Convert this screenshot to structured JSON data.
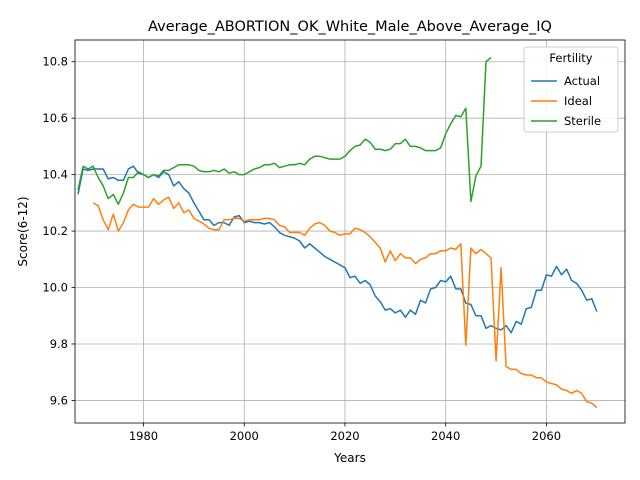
{
  "chart_data": {
    "type": "line",
    "title": "Average_ABORTION_OK_White_Male_Above_Average_IQ",
    "xlabel": "Years",
    "ylabel": "Score(6-12)",
    "xlim": [
      1966.4,
      2075.6
    ],
    "ylim": [
      9.52,
      10.877
    ],
    "xticks": [
      1980,
      2000,
      2020,
      2040,
      2060
    ],
    "yticks": [
      9.6,
      9.8,
      10.0,
      10.2,
      10.4,
      10.6,
      10.8
    ],
    "grid": true,
    "legend": {
      "title": "Fertility",
      "location": "top-right"
    },
    "series": [
      {
        "name": "Actual",
        "color": "#1f77b4",
        "x": [
          1967,
          1968,
          1969,
          1970,
          1971,
          1972,
          1973,
          1974,
          1975,
          1976,
          1977,
          1978,
          1979,
          1980,
          1981,
          1982,
          1983,
          1984,
          1985,
          1986,
          1987,
          1988,
          1989,
          1990,
          1991,
          1992,
          1993,
          1994,
          1995,
          1996,
          1997,
          1998,
          1999,
          2000,
          2001,
          2002,
          2003,
          2004,
          2005,
          2006,
          2007,
          2008,
          2009,
          2010,
          2011,
          2012,
          2013,
          2014,
          2015,
          2016,
          2017,
          2018,
          2019,
          2020,
          2021,
          2022,
          2023,
          2024,
          2025,
          2026,
          2027,
          2028,
          2029,
          2030,
          2031,
          2032,
          2033,
          2034,
          2035,
          2036,
          2037,
          2038,
          2039,
          2040,
          2041,
          2042,
          2043,
          2044,
          2045,
          2046,
          2047,
          2048,
          2049,
          2050,
          2051,
          2052,
          2053,
          2054,
          2055,
          2056,
          2057,
          2058,
          2059,
          2060,
          2061,
          2062,
          2063,
          2064,
          2065,
          2066,
          2067,
          2068,
          2069,
          2070
        ],
        "y": [
          10.33,
          10.42,
          10.415,
          10.42,
          10.42,
          10.42,
          10.385,
          10.39,
          10.38,
          10.38,
          10.42,
          10.43,
          10.405,
          10.4,
          10.39,
          10.4,
          10.39,
          10.41,
          10.4,
          10.36,
          10.375,
          10.35,
          10.335,
          10.3,
          10.27,
          10.24,
          10.24,
          10.22,
          10.23,
          10.23,
          10.22,
          10.25,
          10.255,
          10.23,
          10.235,
          10.23,
          10.23,
          10.225,
          10.23,
          10.215,
          10.195,
          10.185,
          10.18,
          10.175,
          10.165,
          10.14,
          10.155,
          10.14,
          10.125,
          10.11,
          10.1,
          10.09,
          10.08,
          10.07,
          10.035,
          10.04,
          10.015,
          10.025,
          10.01,
          9.97,
          9.95,
          9.92,
          9.925,
          9.91,
          9.92,
          9.895,
          9.92,
          9.905,
          9.955,
          9.945,
          9.995,
          10.0,
          10.025,
          10.02,
          10.04,
          9.995,
          9.995,
          9.945,
          9.94,
          9.9,
          9.9,
          9.855,
          9.865,
          9.855,
          9.85,
          9.865,
          9.84,
          9.88,
          9.87,
          9.925,
          9.93,
          9.99,
          9.99,
          10.045,
          10.04,
          10.075,
          10.045,
          10.065,
          10.025,
          10.015,
          9.99,
          9.955,
          9.96,
          9.915
        ]
      },
      {
        "name": "Ideal",
        "color": "#ff7f0e",
        "x": [
          1970,
          1971,
          1972,
          1973,
          1974,
          1975,
          1976,
          1977,
          1978,
          1979,
          1980,
          1981,
          1982,
          1983,
          1984,
          1985,
          1986,
          1987,
          1988,
          1989,
          1990,
          1991,
          1992,
          1993,
          1994,
          1995,
          1996,
          1997,
          1998,
          1999,
          2000,
          2001,
          2002,
          2003,
          2004,
          2005,
          2006,
          2007,
          2008,
          2009,
          2010,
          2011,
          2012,
          2013,
          2014,
          2015,
          2016,
          2017,
          2018,
          2019,
          2020,
          2021,
          2022,
          2023,
          2024,
          2025,
          2026,
          2027,
          2028,
          2029,
          2030,
          2031,
          2032,
          2033,
          2034,
          2035,
          2036,
          2037,
          2038,
          2039,
          2040,
          2041,
          2042,
          2043,
          2044,
          2045,
          2046,
          2047,
          2048,
          2049,
          2050,
          2051,
          2052,
          2053,
          2054,
          2055,
          2056,
          2057,
          2058,
          2059,
          2060,
          2061,
          2062,
          2063,
          2064,
          2065,
          2066,
          2067,
          2068,
          2069,
          2070
        ],
        "y": [
          10.3,
          10.29,
          10.24,
          10.205,
          10.26,
          10.2,
          10.23,
          10.275,
          10.295,
          10.285,
          10.285,
          10.285,
          10.315,
          10.295,
          10.31,
          10.32,
          10.28,
          10.3,
          10.265,
          10.275,
          10.245,
          10.235,
          10.225,
          10.21,
          10.205,
          10.205,
          10.24,
          10.24,
          10.245,
          10.245,
          10.235,
          10.24,
          10.24,
          10.24,
          10.245,
          10.245,
          10.24,
          10.22,
          10.215,
          10.195,
          10.195,
          10.195,
          10.185,
          10.21,
          10.225,
          10.23,
          10.22,
          10.2,
          10.195,
          10.185,
          10.19,
          10.19,
          10.21,
          10.205,
          10.195,
          10.18,
          10.16,
          10.14,
          10.09,
          10.13,
          10.095,
          10.12,
          10.105,
          10.105,
          10.085,
          10.1,
          10.105,
          10.12,
          10.12,
          10.13,
          10.13,
          10.14,
          10.135,
          10.155,
          9.795,
          10.14,
          10.12,
          10.135,
          10.12,
          10.105,
          9.74,
          10.07,
          9.72,
          9.71,
          9.71,
          9.695,
          9.69,
          9.69,
          9.68,
          9.68,
          9.665,
          9.66,
          9.655,
          9.64,
          9.635,
          9.625,
          9.635,
          9.625,
          9.595,
          9.59,
          9.575
        ]
      },
      {
        "name": "Sterile",
        "color": "#2ca02c",
        "x": [
          1967,
          1968,
          1969,
          1970,
          1971,
          1972,
          1973,
          1974,
          1975,
          1976,
          1977,
          1978,
          1979,
          1980,
          1981,
          1982,
          1983,
          1984,
          1985,
          1986,
          1987,
          1988,
          1989,
          1990,
          1991,
          1992,
          1993,
          1994,
          1995,
          1996,
          1997,
          1998,
          1999,
          2000,
          2001,
          2002,
          2003,
          2004,
          2005,
          2006,
          2007,
          2008,
          2009,
          2010,
          2011,
          2012,
          2013,
          2014,
          2015,
          2016,
          2017,
          2018,
          2019,
          2020,
          2021,
          2022,
          2023,
          2024,
          2025,
          2026,
          2027,
          2028,
          2029,
          2030,
          2031,
          2032,
          2033,
          2034,
          2035,
          2036,
          2037,
          2038,
          2039,
          2040,
          2041,
          2042,
          2043,
          2044,
          2045,
          2046,
          2047,
          2048,
          2049
        ],
        "y": [
          10.345,
          10.43,
          10.42,
          10.43,
          10.39,
          10.36,
          10.315,
          10.33,
          10.295,
          10.335,
          10.39,
          10.39,
          10.41,
          10.4,
          10.39,
          10.4,
          10.395,
          10.415,
          10.415,
          10.425,
          10.435,
          10.435,
          10.435,
          10.43,
          10.415,
          10.41,
          10.41,
          10.415,
          10.41,
          10.42,
          10.405,
          10.41,
          10.4,
          10.4,
          10.41,
          10.42,
          10.425,
          10.435,
          10.435,
          10.44,
          10.425,
          10.43,
          10.435,
          10.435,
          10.44,
          10.435,
          10.455,
          10.465,
          10.465,
          10.46,
          10.455,
          10.455,
          10.455,
          10.465,
          10.485,
          10.5,
          10.505,
          10.525,
          10.515,
          10.49,
          10.49,
          10.485,
          10.49,
          10.51,
          10.51,
          10.525,
          10.5,
          10.5,
          10.495,
          10.485,
          10.485,
          10.485,
          10.495,
          10.545,
          10.58,
          10.61,
          10.605,
          10.635,
          10.305,
          10.395,
          10.43,
          10.8,
          10.815
        ]
      }
    ]
  }
}
